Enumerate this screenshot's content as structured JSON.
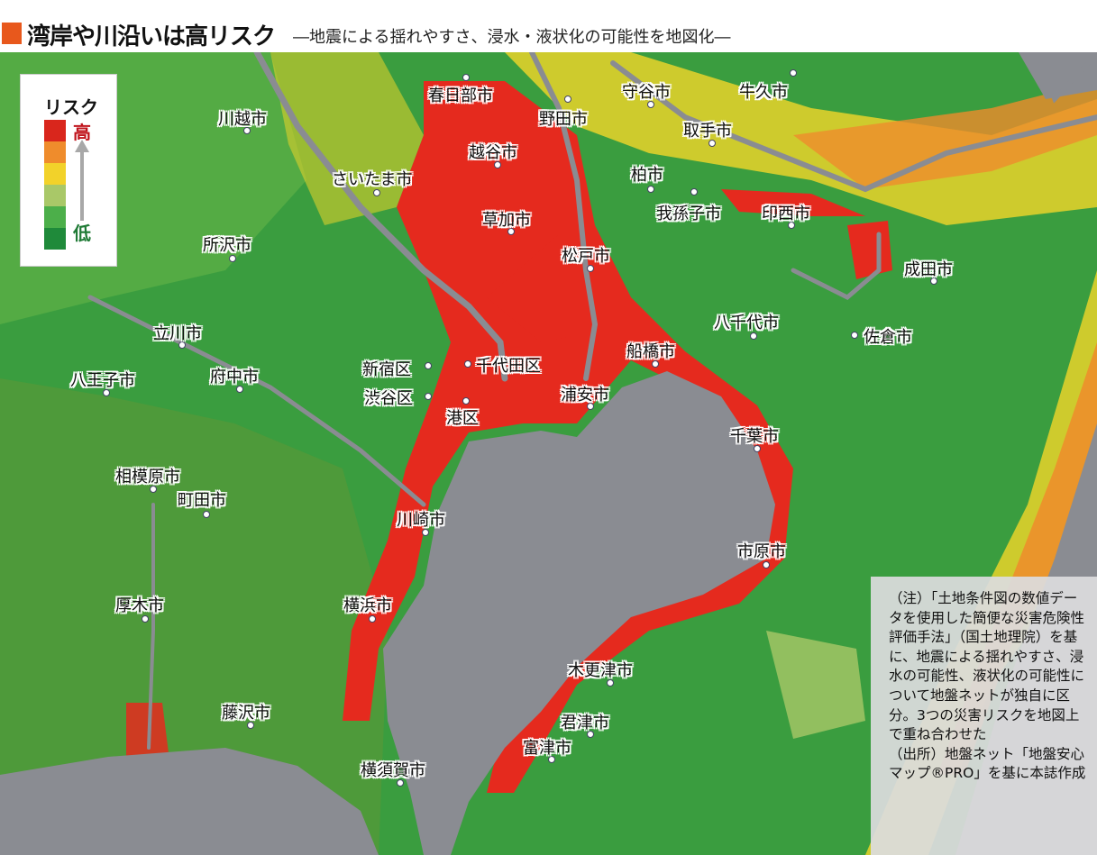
{
  "title": "湾岸や川沿いは高リスク",
  "subtitle": "―地震による揺れやすさ、浸水・液状化の可能性を地図化―",
  "colors": {
    "title_mark": "#e8581c",
    "land_low": "#2f9a3e",
    "water": "#8a8c92",
    "high_risk": "#e52a1e"
  },
  "legend": {
    "title": "リスク",
    "high_label": "高",
    "low_label": "低",
    "levels": [
      "#d9261c",
      "#ef8c2c",
      "#f2d22a",
      "#a9c868",
      "#4caf4a",
      "#1f8a3a"
    ]
  },
  "cities": [
    {
      "name": "春日部市"
    },
    {
      "name": "野田市"
    },
    {
      "name": "守谷市"
    },
    {
      "name": "牛久市"
    },
    {
      "name": "川越市"
    },
    {
      "name": "越谷市"
    },
    {
      "name": "取手市"
    },
    {
      "name": "さいたま市"
    },
    {
      "name": "柏市"
    },
    {
      "name": "我孫子市"
    },
    {
      "name": "印西市"
    },
    {
      "name": "草加市"
    },
    {
      "name": "所沢市"
    },
    {
      "name": "松戸市"
    },
    {
      "name": "成田市"
    },
    {
      "name": "八千代市"
    },
    {
      "name": "佐倉市"
    },
    {
      "name": "立川市"
    },
    {
      "name": "船橋市"
    },
    {
      "name": "新宿区"
    },
    {
      "name": "千代田区"
    },
    {
      "name": "八王子市"
    },
    {
      "name": "府中市"
    },
    {
      "name": "渋谷区"
    },
    {
      "name": "浦安市"
    },
    {
      "name": "港区"
    },
    {
      "name": "千葉市"
    },
    {
      "name": "相模原市"
    },
    {
      "name": "町田市"
    },
    {
      "name": "川崎市"
    },
    {
      "name": "市原市"
    },
    {
      "name": "厚木市"
    },
    {
      "name": "横浜市"
    },
    {
      "name": "木更津市"
    },
    {
      "name": "藤沢市"
    },
    {
      "name": "君津市"
    },
    {
      "name": "富津市"
    },
    {
      "name": "横須賀市"
    }
  ],
  "note": {
    "text": "（注）「土地条件図の数値データを使用した簡便な災害危険性評価手法」（国土地理院）を基に、地震による揺れやすさ、浸水の可能性、液状化の可能性について地盤ネットが独自に区分。3つの災害リスクを地図上で重ね合わせた",
    "source": "（出所）地盤ネット「地盤安心マップ®PRO」を基に本誌作成"
  }
}
